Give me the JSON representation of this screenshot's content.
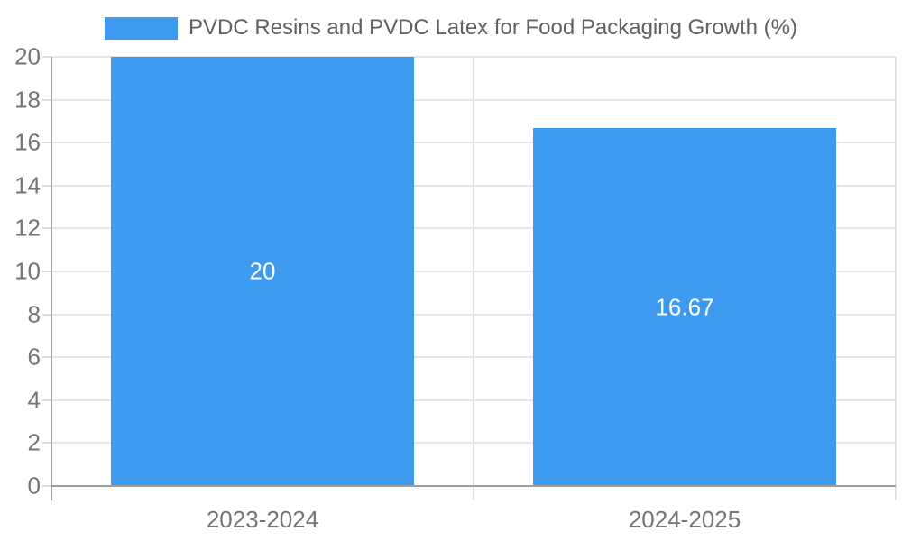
{
  "chart_data": {
    "type": "bar",
    "series_name": "PVDC Resins and PVDC Latex for Food Packaging Growth (%)",
    "categories": [
      "2023-2024",
      "2024-2025"
    ],
    "values": [
      20,
      16.67
    ],
    "value_labels": [
      "20",
      "16.67"
    ],
    "ylim": [
      0,
      20
    ],
    "yticks": [
      0,
      2,
      4,
      6,
      8,
      10,
      12,
      14,
      16,
      18,
      20
    ],
    "grid": true,
    "legend_position": "top-center",
    "colors": {
      "bar": "#3e9aef",
      "h_grid": "#e6e6e6",
      "v_grid": "#e2e2e2",
      "axis": "#9e9e9e",
      "tick_label": "#757575",
      "legend_text": "#616161",
      "value_label": "#ffffff",
      "background": "#ffffff"
    }
  }
}
